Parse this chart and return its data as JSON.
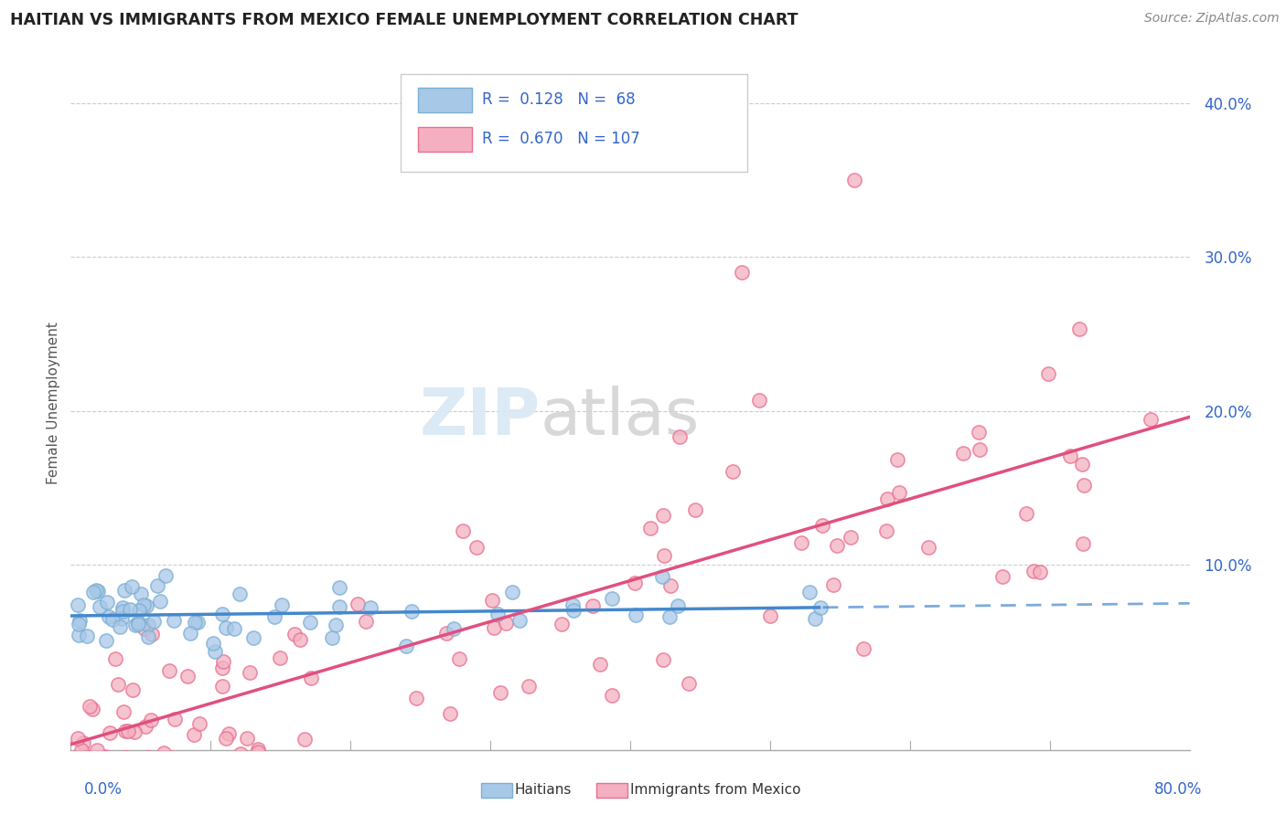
{
  "title": "HAITIAN VS IMMIGRANTS FROM MEXICO FEMALE UNEMPLOYMENT CORRELATION CHART",
  "source": "Source: ZipAtlas.com",
  "ylabel": "Female Unemployment",
  "y_ticks": [
    0.0,
    0.1,
    0.2,
    0.3,
    0.4
  ],
  "y_tick_labels": [
    "",
    "10.0%",
    "20.0%",
    "30.0%",
    "40.0%"
  ],
  "x_range": [
    0.0,
    0.8
  ],
  "y_range": [
    -0.02,
    0.43
  ],
  "watermark_zip": "ZIP",
  "watermark_atlas": "atlas",
  "color_haitian": "#a8c8e8",
  "color_haitian_edge": "#7bafd4",
  "color_mexico": "#f4b0c0",
  "color_mexico_edge": "#e87090",
  "color_haitian_line": "#4488cc",
  "color_mexico_line": "#e05080",
  "color_tick": "#3366cc",
  "color_source": "#888888",
  "color_grid": "#cccccc",
  "color_title": "#222222"
}
